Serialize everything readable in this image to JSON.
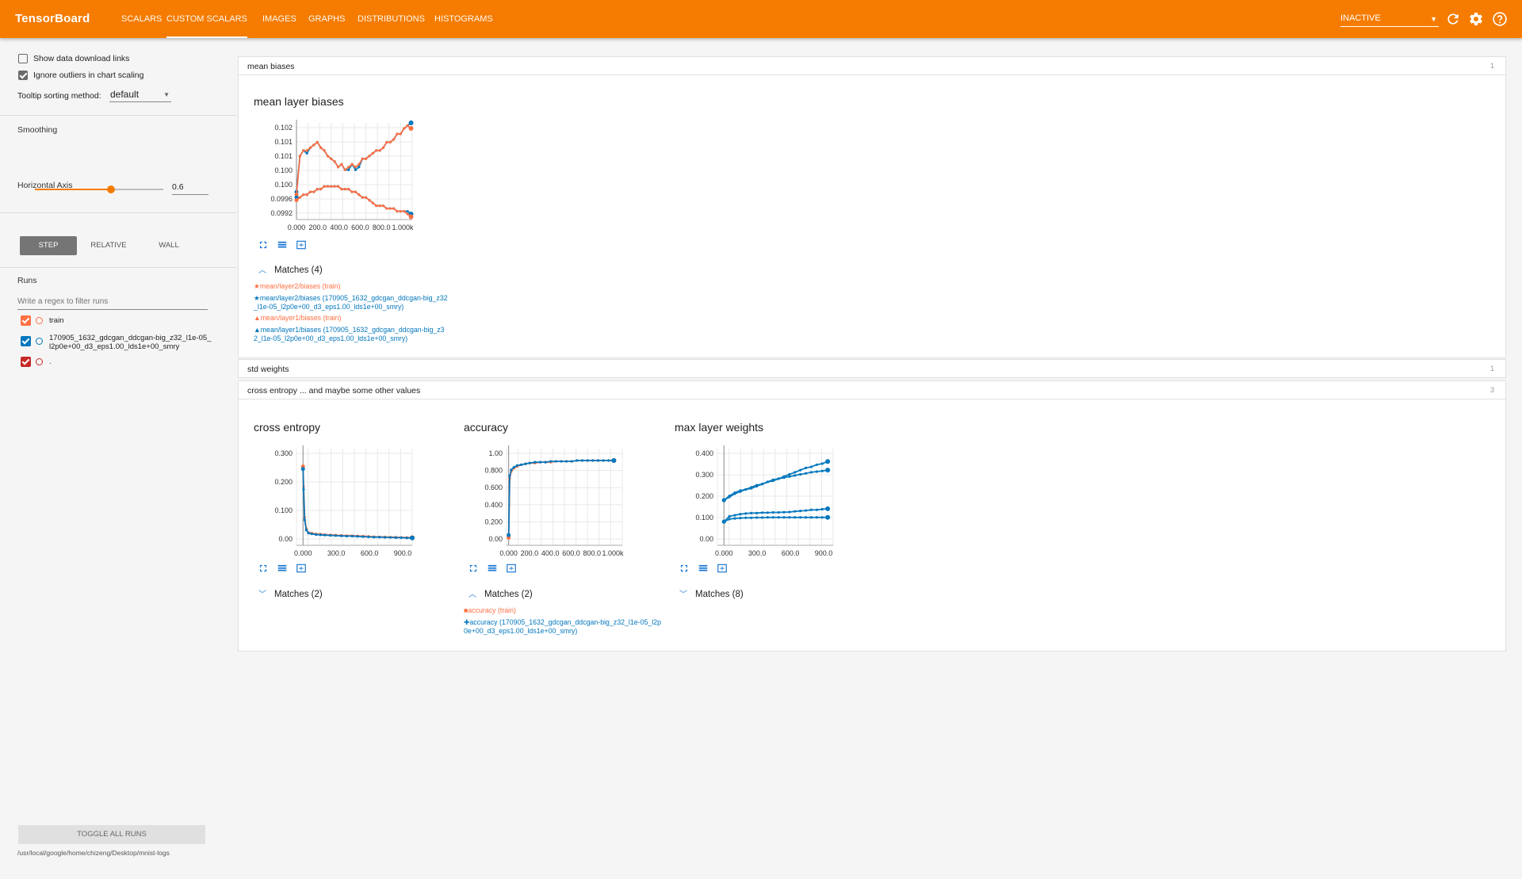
{
  "app": {
    "title": "TensorBoard",
    "tabs": [
      "SCALARS",
      "CUSTOM SCALARS",
      "IMAGES",
      "GRAPHS",
      "DISTRIBUTIONS",
      "HISTOGRAMS"
    ],
    "active_tab": "CUSTOM SCALARS",
    "status_select": "INACTIVE",
    "icons": [
      "refresh-icon",
      "settings-icon",
      "help-icon"
    ],
    "accent_color": "#f57c00"
  },
  "sidebar": {
    "show_download_links": {
      "label": "Show data download links",
      "checked": false
    },
    "ignore_outliers": {
      "label": "Ignore outliers in chart scaling",
      "checked": true
    },
    "tooltip_sorting_label": "Tooltip sorting method:",
    "tooltip_sorting_value": "default",
    "smoothing_label": "Smoothing",
    "smoothing_value": "0.6",
    "horizontal_axis_label": "Horizontal Axis",
    "axis_options": [
      "STEP",
      "RELATIVE",
      "WALL"
    ],
    "axis_selected": "STEP",
    "runs_label": "Runs",
    "runs_filter_placeholder": "Write a regex to filter runs",
    "runs": [
      {
        "name": "train",
        "color": "#ff7043",
        "checked": true
      },
      {
        "name": "170905_1632_gdcgan_ddcgan-big_z32_l1e-05_l2p0e+00_d3_eps1.00_lds1e+00_smry",
        "color": "#0277bd",
        "checked": true
      },
      {
        "name": ".",
        "color": "#c62828",
        "checked": true
      }
    ],
    "toggle_all_label": "TOGGLE ALL RUNS",
    "log_dir": "/usr/local/google/home/chizeng/Desktop/mnist-logs"
  },
  "categories": [
    {
      "name": "mean biases",
      "count": "1",
      "expanded": true
    },
    {
      "name": "std weights",
      "count": "1",
      "expanded": false
    },
    {
      "name": "cross entropy ... and maybe some other values",
      "count": "3",
      "expanded": true
    }
  ],
  "cards": {
    "mean_layer_biases": {
      "title": "mean layer biases",
      "matches_label": "Matches (4)",
      "matches_expanded": true,
      "legend": [
        {
          "marker": "★",
          "text": "mean/layer2/biases (train)",
          "color": "orange"
        },
        {
          "marker": "★",
          "text": "mean/layer2/biases (170905_1632_gdcgan_ddcgan-big_z32_l1e-05_l2p0e+00_d3_eps1.00_lds1e+00_smry)",
          "color": "blue"
        },
        {
          "marker": "▲",
          "text": "mean/layer1/biases (train)",
          "color": "orange"
        },
        {
          "marker": "▲",
          "text": "mean/layer1/biases (170905_1632_gdcgan_ddcgan-big_z32_l1e-05_l2p0e+00_d3_eps1.00_lds1e+00_smry)",
          "color": "blue"
        }
      ]
    },
    "cross_entropy": {
      "title": "cross entropy",
      "matches_label": "Matches (2)",
      "matches_expanded": false
    },
    "accuracy": {
      "title": "accuracy",
      "matches_label": "Matches (2)",
      "matches_expanded": true,
      "legend": [
        {
          "marker": "■",
          "text": "accuracy (train)",
          "color": "orange"
        },
        {
          "marker": "✚",
          "text": "accuracy (170905_1632_gdcgan_ddcgan-big_z32_l1e-05_l2p0e+00_d3_eps1.00_lds1e+00_smry)",
          "color": "blue"
        }
      ]
    },
    "max_layer_weights": {
      "title": "max layer weights",
      "matches_label": "Matches (8)",
      "matches_expanded": false
    }
  },
  "chart_data": [
    {
      "id": "mean_layer_biases",
      "type": "line",
      "x_ticks": [
        "0.000",
        "200.0",
        "400.0",
        "600.0",
        "800.0",
        "1.000k"
      ],
      "y_ticks": [
        "0.0992",
        "0.0996",
        "0.100",
        "0.100",
        "0.101",
        "0.101",
        "0.102"
      ],
      "xlim": [
        0,
        1000
      ],
      "ylim": [
        0.099,
        0.1025
      ],
      "series": [
        {
          "color": "#0277bd",
          "x": [
            0,
            30,
            60,
            90,
            120,
            150,
            180,
            210,
            240,
            270,
            300,
            330,
            360,
            390,
            420,
            450,
            480,
            510,
            540,
            570,
            600,
            630,
            660,
            690,
            720,
            750,
            780,
            810,
            840,
            870,
            900,
            930,
            960,
            990
          ],
          "y": [
            0.1,
            0.1013,
            0.1015,
            0.1014,
            0.1016,
            0.1017,
            0.1018,
            0.1016,
            0.1015,
            0.1013,
            0.1012,
            0.1011,
            0.1009,
            0.101,
            0.1008,
            0.1008,
            0.101,
            0.1008,
            0.1009,
            0.1012,
            0.1012,
            0.1013,
            0.1014,
            0.1015,
            0.1015,
            0.1016,
            0.1018,
            0.1018,
            0.1019,
            0.1021,
            0.1021,
            0.1023,
            0.1024,
            0.1025
          ]
        },
        {
          "color": "#ff7043",
          "x": [
            0,
            30,
            60,
            90,
            120,
            150,
            180,
            210,
            240,
            270,
            300,
            330,
            360,
            390,
            420,
            450,
            480,
            510,
            540,
            570,
            600,
            630,
            660,
            690,
            720,
            750,
            780,
            810,
            840,
            870,
            900,
            930,
            960,
            990
          ],
          "y": [
            0.0999,
            0.1013,
            0.1015,
            0.1015,
            0.1016,
            0.1017,
            0.1018,
            0.1016,
            0.1015,
            0.1013,
            0.1012,
            0.1011,
            0.1009,
            0.101,
            0.1008,
            0.1009,
            0.101,
            0.1009,
            0.101,
            0.1012,
            0.1012,
            0.1013,
            0.1014,
            0.1015,
            0.1015,
            0.1016,
            0.1018,
            0.1018,
            0.1019,
            0.1021,
            0.1021,
            0.1023,
            0.1024,
            0.1023
          ]
        },
        {
          "color": "#0277bd",
          "x": [
            0,
            30,
            60,
            90,
            120,
            150,
            180,
            210,
            240,
            270,
            300,
            330,
            360,
            390,
            420,
            450,
            480,
            510,
            540,
            570,
            600,
            630,
            660,
            690,
            720,
            750,
            780,
            810,
            840,
            870,
            900,
            930,
            960,
            990
          ],
          "y": [
            0.0998,
            0.0998,
            0.0999,
            0.0999,
            0.1,
            0.1,
            0.1001,
            0.1001,
            0.1002,
            0.1002,
            0.1002,
            0.1002,
            0.1002,
            0.1001,
            0.1001,
            0.1001,
            0.1,
            0.1,
            0.0999,
            0.0998,
            0.0998,
            0.0997,
            0.0996,
            0.0995,
            0.0995,
            0.0995,
            0.0994,
            0.0994,
            0.0994,
            0.0993,
            0.0993,
            0.0993,
            0.0993,
            0.0992
          ]
        },
        {
          "color": "#ff7043",
          "x": [
            0,
            30,
            60,
            90,
            120,
            150,
            180,
            210,
            240,
            270,
            300,
            330,
            360,
            390,
            420,
            450,
            480,
            510,
            540,
            570,
            600,
            630,
            660,
            690,
            720,
            750,
            780,
            810,
            840,
            870,
            900,
            930,
            960,
            990
          ],
          "y": [
            0.0997,
            0.0998,
            0.0999,
            0.0999,
            0.1,
            0.1,
            0.1001,
            0.1001,
            0.1002,
            0.1002,
            0.1002,
            0.1002,
            0.1002,
            0.1001,
            0.1001,
            0.1001,
            0.1,
            0.1,
            0.0999,
            0.0998,
            0.0998,
            0.0997,
            0.0996,
            0.0995,
            0.0995,
            0.0995,
            0.0994,
            0.0994,
            0.0994,
            0.0993,
            0.0993,
            0.0993,
            0.0992,
            0.0991
          ]
        }
      ]
    },
    {
      "id": "cross_entropy",
      "type": "line",
      "x_ticks": [
        "0.000",
        "300.0",
        "600.0",
        "900.0"
      ],
      "y_ticks": [
        "0.00",
        "0.100",
        "0.200",
        "0.300"
      ],
      "xlim": [
        -60,
        1000
      ],
      "ylim": [
        -0.02,
        0.36
      ],
      "series": [
        {
          "color": "#ff7043",
          "x": [
            0,
            5,
            15,
            30,
            50,
            80,
            120,
            160,
            200,
            250,
            300,
            350,
            400,
            450,
            500,
            550,
            600,
            650,
            700,
            750,
            800,
            850,
            900,
            950,
            1000
          ],
          "y": [
            0.29,
            0.21,
            0.09,
            0.045,
            0.03,
            0.028,
            0.025,
            0.024,
            0.022,
            0.021,
            0.02,
            0.019,
            0.018,
            0.018,
            0.017,
            0.016,
            0.015,
            0.014,
            0.013,
            0.013,
            0.012,
            0.012,
            0.011,
            0.011,
            0.01
          ]
        },
        {
          "color": "#0277bd",
          "x": [
            0,
            5,
            15,
            30,
            50,
            80,
            120,
            160,
            200,
            250,
            300,
            350,
            400,
            450,
            500,
            550,
            600,
            650,
            700,
            750,
            800,
            850,
            900,
            950,
            1000
          ],
          "y": [
            0.28,
            0.2,
            0.08,
            0.04,
            0.028,
            0.025,
            0.022,
            0.021,
            0.02,
            0.019,
            0.018,
            0.017,
            0.016,
            0.016,
            0.015,
            0.014,
            0.013,
            0.012,
            0.012,
            0.011,
            0.011,
            0.01,
            0.01,
            0.009,
            0.009
          ]
        }
      ]
    },
    {
      "id": "accuracy",
      "type": "line",
      "x_ticks": [
        "0.000",
        "200.0",
        "400.0",
        "600.0",
        "800.0",
        "1.000k"
      ],
      "y_ticks": [
        "0.00",
        "0.200",
        "0.400",
        "0.600",
        "0.800",
        "1.00"
      ],
      "xlim": [
        -20,
        1080
      ],
      "ylim": [
        -0.04,
        1.1
      ],
      "series": [
        {
          "color": "#ff7043",
          "x": [
            0,
            10,
            25,
            50,
            80,
            120,
            160,
            200,
            250,
            300,
            350,
            400,
            450,
            500,
            550,
            600,
            650,
            700,
            750,
            800,
            850,
            900,
            950,
            1000
          ],
          "y": [
            0.05,
            0.75,
            0.83,
            0.87,
            0.89,
            0.91,
            0.92,
            0.93,
            0.93,
            0.94,
            0.94,
            0.94,
            0.95,
            0.95,
            0.95,
            0.95,
            0.96,
            0.96,
            0.96,
            0.96,
            0.96,
            0.96,
            0.96,
            0.96
          ]
        },
        {
          "color": "#0277bd",
          "x": [
            0,
            10,
            25,
            50,
            80,
            120,
            160,
            200,
            250,
            300,
            350,
            400,
            450,
            500,
            550,
            600,
            650,
            700,
            750,
            800,
            850,
            900,
            950,
            1000
          ],
          "y": [
            0.08,
            0.78,
            0.85,
            0.88,
            0.9,
            0.91,
            0.92,
            0.93,
            0.94,
            0.94,
            0.94,
            0.95,
            0.95,
            0.95,
            0.95,
            0.95,
            0.96,
            0.96,
            0.96,
            0.96,
            0.96,
            0.96,
            0.96,
            0.96
          ]
        }
      ]
    },
    {
      "id": "max_layer_weights",
      "type": "line",
      "x_ticks": [
        "0.000",
        "300.0",
        "600.0",
        "900.0"
      ],
      "y_ticks": [
        "0.00",
        "0.100",
        "0.200",
        "0.300",
        "0.400"
      ],
      "xlim": [
        -60,
        1000
      ],
      "ylim": [
        -0.01,
        0.44
      ],
      "series": [
        {
          "color": "#0277bd",
          "x": [
            0,
            50,
            100,
            150,
            200,
            250,
            300,
            350,
            400,
            450,
            500,
            550,
            600,
            650,
            700,
            750,
            800,
            850,
            900,
            950
          ],
          "y": [
            0.2,
            0.215,
            0.23,
            0.24,
            0.25,
            0.255,
            0.265,
            0.275,
            0.285,
            0.29,
            0.3,
            0.31,
            0.32,
            0.33,
            0.34,
            0.35,
            0.355,
            0.365,
            0.37,
            0.38
          ]
        },
        {
          "color": "#0277bd",
          "x": [
            0,
            50,
            100,
            150,
            200,
            250,
            300,
            350,
            400,
            450,
            500,
            550,
            600,
            650,
            700,
            750,
            800,
            850,
            900,
            950
          ],
          "y": [
            0.2,
            0.22,
            0.235,
            0.245,
            0.25,
            0.26,
            0.27,
            0.275,
            0.285,
            0.295,
            0.3,
            0.305,
            0.31,
            0.315,
            0.32,
            0.325,
            0.33,
            0.333,
            0.336,
            0.34
          ]
        },
        {
          "color": "#0277bd",
          "x": [
            0,
            50,
            100,
            150,
            200,
            250,
            300,
            350,
            400,
            450,
            500,
            550,
            600,
            650,
            700,
            750,
            800,
            850,
            900,
            950
          ],
          "y": [
            0.1,
            0.125,
            0.13,
            0.135,
            0.138,
            0.14,
            0.14,
            0.142,
            0.142,
            0.143,
            0.143,
            0.144,
            0.145,
            0.148,
            0.15,
            0.152,
            0.155,
            0.155,
            0.158,
            0.16
          ]
        },
        {
          "color": "#0277bd",
          "x": [
            0,
            50,
            100,
            150,
            200,
            250,
            300,
            350,
            400,
            450,
            500,
            550,
            600,
            650,
            700,
            750,
            800,
            850,
            900,
            950
          ],
          "y": [
            0.1,
            0.112,
            0.115,
            0.117,
            0.118,
            0.118,
            0.119,
            0.119,
            0.12,
            0.12,
            0.12,
            0.12,
            0.12,
            0.12,
            0.12,
            0.12,
            0.12,
            0.12,
            0.12,
            0.12
          ]
        }
      ]
    }
  ]
}
